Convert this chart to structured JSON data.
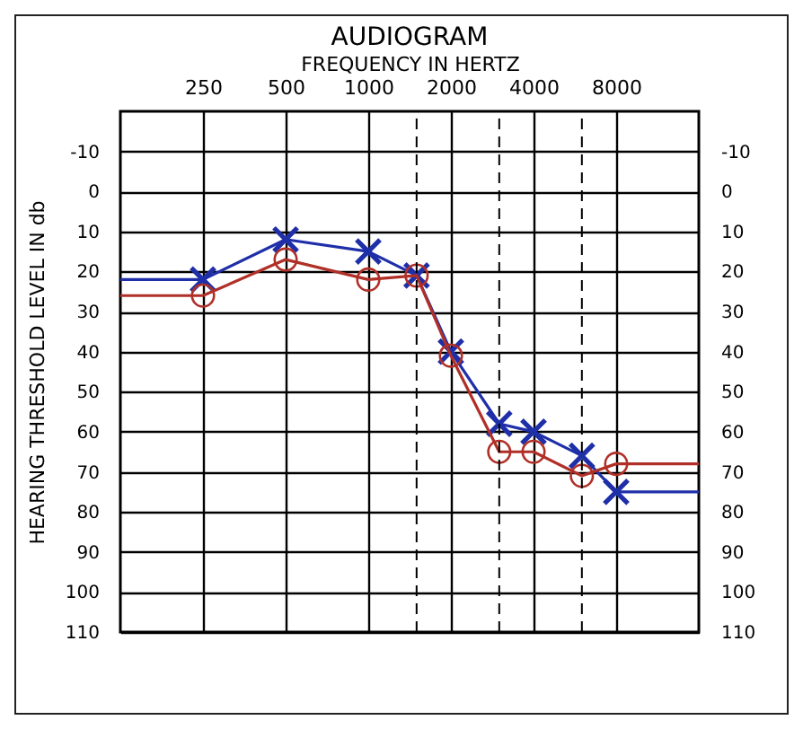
{
  "chart_data": {
    "type": "line",
    "title": "AUDIOGRAM",
    "xlabel": "FREQUENCY IN HERTZ",
    "ylabel": "HEARING THRESHOLD LEVEL IN db",
    "log": "x",
    "grid": true,
    "xlim": [
      125,
      16000
    ],
    "xticks": [
      250,
      500,
      1000,
      2000,
      4000,
      8000
    ],
    "ylim": [
      110,
      -20
    ],
    "yticks": [
      -10,
      0,
      10,
      20,
      30,
      40,
      50,
      60,
      70,
      80,
      90,
      100,
      110
    ],
    "y2lim": [
      110,
      -20
    ],
    "y2ticks": [
      -10,
      0,
      10,
      20,
      30,
      40,
      50,
      60,
      70,
      80,
      90,
      100,
      110
    ],
    "ref_lines": [
      {
        "axis": "x",
        "value": 1500,
        "line_style": "dashed",
        "color": "#000000"
      },
      {
        "axis": "x",
        "value": 3000,
        "line_style": "dashed",
        "color": "#000000"
      },
      {
        "axis": "x",
        "value": 6000,
        "line_style": "dashed",
        "color": "#000000"
      }
    ],
    "series": [
      {
        "color": "#1f2fa8",
        "marker": "cross",
        "x": [
          250,
          500,
          1000,
          1500,
          2000,
          3000,
          4000,
          6000,
          8000
        ],
        "values": [
          22,
          12,
          15,
          21,
          40,
          58,
          60,
          66,
          75
        ]
      },
      {
        "color": "#b03028",
        "marker": "circle",
        "x": [
          250,
          500,
          1000,
          1500,
          2000,
          3000,
          4000,
          6000,
          8000
        ],
        "values": [
          26,
          17,
          22,
          21,
          41,
          65,
          65,
          71,
          68
        ]
      },
      {
        "color": "#1f2fa8",
        "marker": "none",
        "x": [
          125,
          250
        ],
        "values": [
          22,
          22
        ]
      },
      {
        "color": "#b03028",
        "marker": "none",
        "x": [
          125,
          250
        ],
        "values": [
          26,
          26
        ]
      },
      {
        "color": "#1f2fa8",
        "marker": "none",
        "x": [
          8000,
          16000
        ],
        "values": [
          75,
          75
        ]
      },
      {
        "color": "#b03028",
        "marker": "none",
        "x": [
          8000,
          16000
        ],
        "values": [
          68,
          68
        ]
      }
    ]
  }
}
